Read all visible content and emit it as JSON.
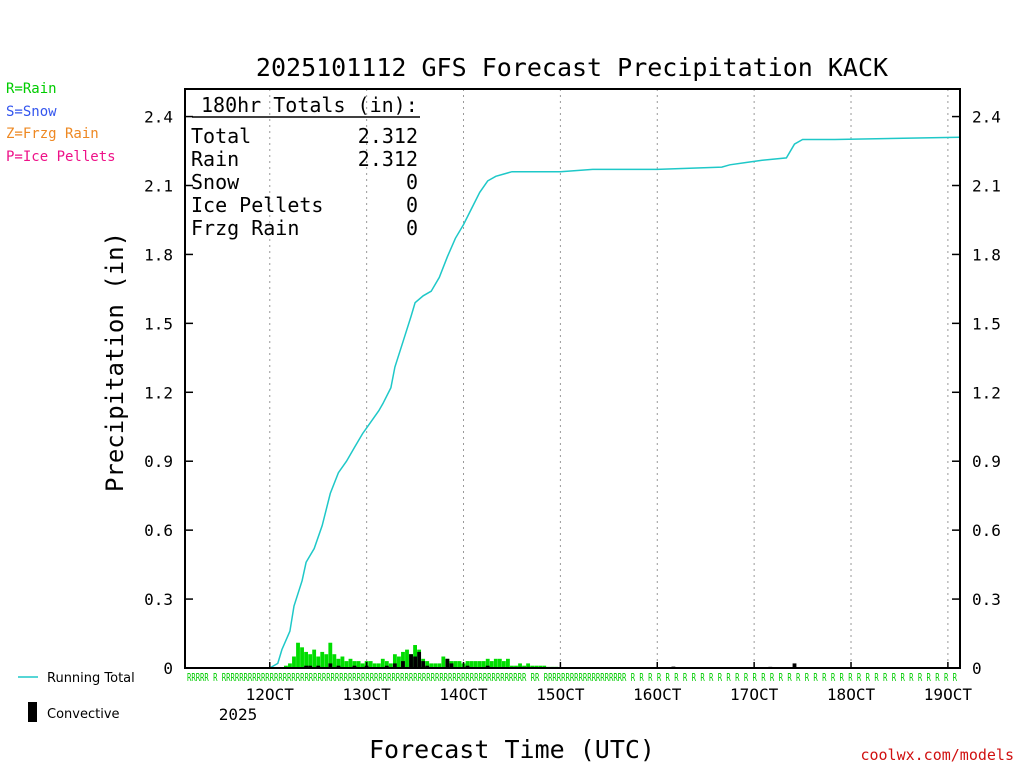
{
  "chart_data": {
    "type": "bar",
    "title": "2025101112 GFS Forecast Precipitation KACK",
    "xlabel": "Forecast Time (UTC)",
    "ylabel": "Precipitation (in)",
    "ylim": [
      0,
      2.52
    ],
    "yticks": [
      0,
      0.3,
      0.6,
      0.9,
      1.2,
      1.5,
      1.8,
      2.1,
      2.4
    ],
    "ytick_labels": [
      "0",
      "0.3",
      "0.6",
      "0.9",
      "1.2",
      "1.5",
      "1.8",
      "2.1",
      "2.4"
    ],
    "xlim_hours": [
      -21,
      171
    ],
    "xticks_hours": [
      0,
      24,
      48,
      72,
      96,
      120,
      144,
      168
    ],
    "xtick_labels": [
      "12OCT",
      "13OCT",
      "14OCT",
      "15OCT",
      "16OCT",
      "17OCT",
      "18OCT",
      "19OCT"
    ],
    "year_label": "2025",
    "grid": "dotted vertical at each day",
    "totals_box": {
      "heading": "180hr Totals (in):",
      "rows": [
        {
          "label": "Total",
          "value": "2.312"
        },
        {
          "label": "Rain",
          "value": "2.312"
        },
        {
          "label": "Snow",
          "value": "0"
        },
        {
          "label": "Ice Pellets",
          "value": "0"
        },
        {
          "label": "Frzg Rain",
          "value": "0"
        }
      ]
    },
    "running_total": {
      "name": "Running Total",
      "color": "#1ec8c8",
      "x_hours": [
        -21,
        0,
        2,
        3,
        5,
        6,
        8,
        9,
        11,
        13,
        15,
        17,
        19,
        21,
        23,
        25,
        27,
        28,
        30,
        31,
        33,
        35,
        36,
        38,
        40,
        42,
        44,
        46,
        48,
        50,
        52,
        54,
        56,
        58,
        60,
        62,
        64,
        66,
        68,
        70,
        72,
        80,
        96,
        112,
        114,
        118,
        122,
        128,
        130,
        132,
        134,
        136,
        138,
        140,
        171
      ],
      "y_in": [
        0,
        0,
        0.02,
        0.08,
        0.16,
        0.27,
        0.38,
        0.46,
        0.52,
        0.62,
        0.76,
        0.85,
        0.9,
        0.96,
        1.02,
        1.07,
        1.12,
        1.15,
        1.22,
        1.31,
        1.42,
        1.53,
        1.59,
        1.62,
        1.64,
        1.7,
        1.79,
        1.87,
        1.93,
        2.0,
        2.07,
        2.12,
        2.14,
        2.15,
        2.16,
        2.16,
        2.16,
        2.16,
        2.16,
        2.16,
        2.16,
        2.17,
        2.17,
        2.18,
        2.19,
        2.2,
        2.21,
        2.22,
        2.28,
        2.3,
        2.3,
        2.3,
        2.3,
        2.3,
        2.31
      ]
    },
    "series": [
      {
        "name": "Rain",
        "color": "#00dd00",
        "x_hours": [
          4,
          5,
          6,
          7,
          8,
          9,
          10,
          11,
          12,
          13,
          14,
          15,
          16,
          17,
          18,
          19,
          20,
          21,
          22,
          23,
          24,
          25,
          26,
          27,
          28,
          29,
          30,
          31,
          32,
          33,
          34,
          35,
          36,
          37,
          38,
          39,
          40,
          41,
          42,
          43,
          44,
          45,
          46,
          47,
          48,
          49,
          50,
          51,
          52,
          53,
          54,
          55,
          56,
          57,
          58,
          59,
          60,
          61,
          62,
          63,
          64,
          65,
          66,
          67,
          68,
          69,
          70,
          71
        ],
        "values": [
          0.01,
          0.02,
          0.05,
          0.11,
          0.09,
          0.07,
          0.06,
          0.08,
          0.05,
          0.07,
          0.06,
          0.11,
          0.06,
          0.04,
          0.05,
          0.03,
          0.04,
          0.03,
          0.03,
          0.02,
          0.03,
          0.03,
          0.02,
          0.02,
          0.04,
          0.03,
          0.02,
          0.06,
          0.05,
          0.07,
          0.08,
          0.06,
          0.1,
          0.08,
          0.04,
          0.03,
          0.02,
          0.02,
          0.02,
          0.05,
          0.04,
          0.03,
          0.03,
          0.03,
          0.02,
          0.03,
          0.03,
          0.03,
          0.03,
          0.03,
          0.04,
          0.03,
          0.04,
          0.04,
          0.03,
          0.04,
          0.01,
          0.01,
          0.02,
          0.01,
          0.02,
          0.01,
          0.01,
          0.01,
          0.01,
          0.005,
          0.005,
          0.005
        ]
      },
      {
        "name": "Convective",
        "color": "#000000",
        "x_hours": [
          9,
          10,
          12,
          15,
          17,
          21,
          24,
          29,
          31,
          33,
          35,
          36,
          37,
          38,
          39,
          44,
          45,
          49,
          54,
          62,
          64,
          73,
          86,
          92,
          100,
          108,
          112,
          116,
          124,
          126,
          130,
          134
        ],
        "values": [
          0.01,
          0.01,
          0.01,
          0.02,
          0.01,
          0.01,
          0.01,
          0.01,
          0.02,
          0.03,
          0.06,
          0.05,
          0.07,
          0.03,
          0.01,
          0.04,
          0.02,
          0.01,
          0.01,
          0.005,
          0.005,
          0.004,
          0.004,
          0.004,
          0.006,
          0.004,
          0.004,
          0.004,
          0.005,
          0.004,
          0.02,
          0.004
        ]
      }
    ],
    "type_codes": {
      "codes_line": "RRRRR R RRRRRRRRRRRRRRRRRRRRRRRRRRRRRRRRRRRRRRRRRRRRRRRRRRRRRRRRRRRRRRRRRRRRRR  RR  RRRRRRRRRRRRRRRRRRR R R R R R R R R R R R R R R R R R R R R R R R R R R R R R R R R R R  R R R R",
      "color": "#00cc00"
    }
  },
  "type_legend": [
    {
      "text": "R=Rain",
      "color": "#00cc00"
    },
    {
      "text": "S=Snow",
      "color": "#3355ee"
    },
    {
      "text": "Z=Frzg Rain",
      "color": "#ee8822"
    },
    {
      "text": "P=Ice Pellets",
      "color": "#ee1188"
    }
  ],
  "legend": {
    "running_total_label": "Running Total",
    "convective_label": "Convective"
  },
  "credit": "coolwx.com/models"
}
